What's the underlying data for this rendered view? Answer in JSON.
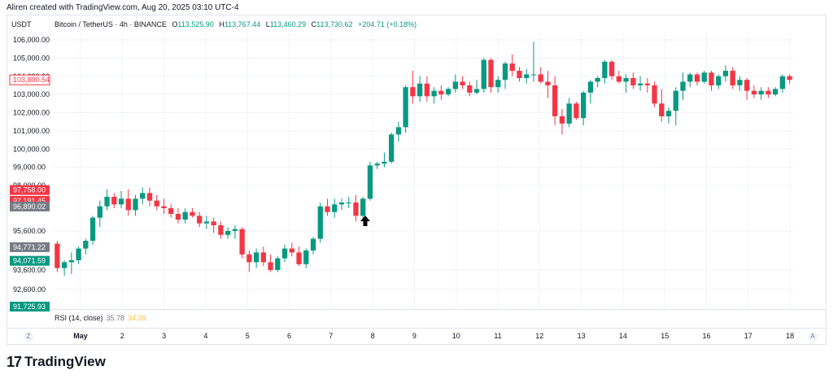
{
  "header": {
    "created_by": "Aliren created with TradingView.com, Aug 20, 2025 03:10 UTC-4"
  },
  "symbol_label": "USDT",
  "legend": {
    "name": "Bitcoin / TetherUS · 4h · BINANCE",
    "o_label": "O",
    "o": "113,525.90",
    "h_label": "H",
    "h": "113,767.44",
    "l_label": "L",
    "l": "113,460.29",
    "c_label": "C",
    "c": "113,730.62",
    "change": "+204.71 (+0.18%)"
  },
  "rsi": {
    "label": "RSI (14, close)",
    "value1": "35.78",
    "value2": "34.39"
  },
  "buttons": {
    "z": "Z",
    "a": "A"
  },
  "logo": {
    "text": "TradingView"
  },
  "colors": {
    "up": "#089981",
    "down": "#f23645",
    "grid": "#f0f3fa",
    "gray_tag": "#787b86"
  },
  "chart_data": {
    "type": "candlestick",
    "ylim": [
      91725.93,
      106000
    ],
    "y_ticks": [
      "106,000.00",
      "105,000.00",
      "104,000.00",
      "103,000.00",
      "102,000.00",
      "101,000.00",
      "100,000.00",
      "99,000.00",
      "98,000.00",
      "95,600.00",
      "93,600.00",
      "92,600.00"
    ],
    "y_tick_values": [
      106000,
      105000,
      104000,
      103000,
      102000,
      101000,
      100000,
      99000,
      98000,
      95600,
      93600,
      92600
    ],
    "x_ticks": [
      "May",
      "2",
      "3",
      "4",
      "5",
      "6",
      "7",
      "8",
      "9",
      "10",
      "11",
      "12",
      "13",
      "14",
      "15",
      "16",
      "17",
      "18"
    ],
    "price_tags": [
      {
        "label": "103,800.54",
        "value": 103800.54,
        "style": "outline-red"
      },
      {
        "label": "97,758.00",
        "value": 97758,
        "style": "red"
      },
      {
        "label": "97,191.45",
        "value": 97191.45,
        "style": "red"
      },
      {
        "label": "96,890.02",
        "value": 96890.02,
        "style": "gray"
      },
      {
        "label": "94,771.22",
        "value": 94771.22,
        "style": "gray"
      },
      {
        "label": "94,071.59",
        "value": 94071.59,
        "style": "green"
      },
      {
        "label": "91,725.93",
        "value": 91725.93,
        "style": "green"
      }
    ],
    "candles": [
      [
        94950,
        95100,
        93500,
        93700
      ],
      [
        93700,
        94100,
        93300,
        94000
      ],
      [
        94000,
        94500,
        93400,
        94100
      ],
      [
        94100,
        94800,
        93900,
        94700
      ],
      [
        94700,
        95200,
        94400,
        95100
      ],
      [
        95100,
        96400,
        94900,
        96300
      ],
      [
        96300,
        97200,
        95800,
        96900
      ],
      [
        96900,
        97800,
        96700,
        97400
      ],
      [
        97400,
        97600,
        96800,
        97000
      ],
      [
        97000,
        97700,
        96800,
        97300
      ],
      [
        97300,
        97800,
        96400,
        96700
      ],
      [
        96700,
        97500,
        96400,
        97300
      ],
      [
        97300,
        97900,
        97000,
        97600
      ],
      [
        97600,
        97900,
        96900,
        97200
      ],
      [
        97200,
        97500,
        96700,
        96900
      ],
      [
        96900,
        97300,
        96500,
        96800
      ],
      [
        96800,
        97000,
        96300,
        96500
      ],
      [
        96500,
        96800,
        96000,
        96200
      ],
      [
        96200,
        96800,
        96000,
        96600
      ],
      [
        96600,
        96800,
        96300,
        96400
      ],
      [
        96400,
        96600,
        95800,
        96000
      ],
      [
        96000,
        96400,
        95700,
        96100
      ],
      [
        96100,
        96300,
        95500,
        95900
      ],
      [
        95900,
        96100,
        95200,
        95400
      ],
      [
        95400,
        95800,
        95200,
        95600
      ],
      [
        95600,
        95900,
        95200,
        95700
      ],
      [
        95700,
        95800,
        94200,
        94400
      ],
      [
        94400,
        94600,
        93500,
        94000
      ],
      [
        94000,
        94700,
        93700,
        94500
      ],
      [
        94500,
        94800,
        93800,
        94000
      ],
      [
        94000,
        94400,
        93500,
        93600
      ],
      [
        93600,
        94300,
        93500,
        94200
      ],
      [
        94200,
        94900,
        94000,
        94700
      ],
      [
        94700,
        95000,
        94300,
        94500
      ],
      [
        94500,
        94800,
        93800,
        93900
      ],
      [
        93900,
        94700,
        93700,
        94600
      ],
      [
        94600,
        95300,
        94400,
        95200
      ],
      [
        95200,
        97100,
        95000,
        96900
      ],
      [
        96900,
        97300,
        96400,
        96600
      ],
      [
        96600,
        97300,
        96300,
        97000
      ],
      [
        97000,
        97300,
        96700,
        97100
      ],
      [
        97100,
        97400,
        96800,
        97100
      ],
      [
        97100,
        97500,
        96100,
        96400
      ],
      [
        96400,
        97400,
        96200,
        97300
      ],
      [
        97300,
        99300,
        97200,
        99100
      ],
      [
        99100,
        99300,
        98900,
        99200
      ],
      [
        99200,
        99800,
        99000,
        99300
      ],
      [
        99300,
        100900,
        99200,
        100800
      ],
      [
        100800,
        101500,
        100400,
        101200
      ],
      [
        101200,
        103500,
        100900,
        103400
      ],
      [
        103400,
        104300,
        102500,
        102900
      ],
      [
        102900,
        104000,
        102600,
        103600
      ],
      [
        103600,
        104000,
        102600,
        102900
      ],
      [
        102900,
        103400,
        102500,
        103200
      ],
      [
        103200,
        103500,
        102700,
        103000
      ],
      [
        103000,
        103400,
        102900,
        103300
      ],
      [
        103300,
        104100,
        103100,
        103700
      ],
      [
        103700,
        104000,
        103300,
        103500
      ],
      [
        103500,
        103700,
        102900,
        103100
      ],
      [
        103100,
        103800,
        103000,
        103300
      ],
      [
        103300,
        105000,
        103100,
        104900
      ],
      [
        104900,
        105000,
        103100,
        103400
      ],
      [
        103400,
        104000,
        103100,
        103800
      ],
      [
        103800,
        104800,
        103300,
        104700
      ],
      [
        104700,
        105200,
        104000,
        104300
      ],
      [
        104300,
        104500,
        103700,
        103900
      ],
      [
        103900,
        104400,
        103600,
        104100
      ],
      [
        104100,
        105900,
        103700,
        104100
      ],
      [
        104100,
        104500,
        103600,
        103700
      ],
      [
        103700,
        104300,
        102800,
        103500
      ],
      [
        103500,
        104000,
        101300,
        101800
      ],
      [
        101800,
        102200,
        100800,
        101400
      ],
      [
        101400,
        102800,
        101200,
        102500
      ],
      [
        102500,
        102600,
        101600,
        101700
      ],
      [
        101700,
        103200,
        101300,
        103100
      ],
      [
        103100,
        103800,
        102500,
        103700
      ],
      [
        103700,
        104000,
        103400,
        103900
      ],
      [
        103900,
        104900,
        103600,
        104800
      ],
      [
        104800,
        104900,
        103800,
        104000
      ],
      [
        104000,
        104300,
        103600,
        103700
      ],
      [
        103700,
        104100,
        103100,
        103900
      ],
      [
        103900,
        104200,
        103300,
        103500
      ],
      [
        103500,
        104000,
        103200,
        103600
      ],
      [
        103600,
        103900,
        103100,
        103500
      ],
      [
        103500,
        103700,
        102300,
        102500
      ],
      [
        102500,
        103300,
        101500,
        101800
      ],
      [
        101800,
        102300,
        101400,
        102100
      ],
      [
        102100,
        103400,
        101300,
        103200
      ],
      [
        103200,
        104200,
        102700,
        103700
      ],
      [
        103700,
        104200,
        103400,
        104100
      ],
      [
        104100,
        104200,
        103500,
        103700
      ],
      [
        103700,
        104300,
        103600,
        104200
      ],
      [
        104200,
        104300,
        103200,
        103500
      ],
      [
        103500,
        104100,
        103300,
        104000
      ],
      [
        104000,
        104600,
        103700,
        104300
      ],
      [
        104300,
        104500,
        103300,
        103500
      ],
      [
        103500,
        104000,
        103200,
        103800
      ],
      [
        103800,
        103900,
        102700,
        103200
      ],
      [
        103200,
        103500,
        102800,
        103000
      ],
      [
        103000,
        103400,
        102700,
        103200
      ],
      [
        103200,
        103400,
        102800,
        103000
      ],
      [
        103000,
        103400,
        102900,
        103300
      ],
      [
        103300,
        104100,
        103100,
        104000
      ],
      [
        104000,
        104100,
        103600,
        103800
      ]
    ]
  }
}
